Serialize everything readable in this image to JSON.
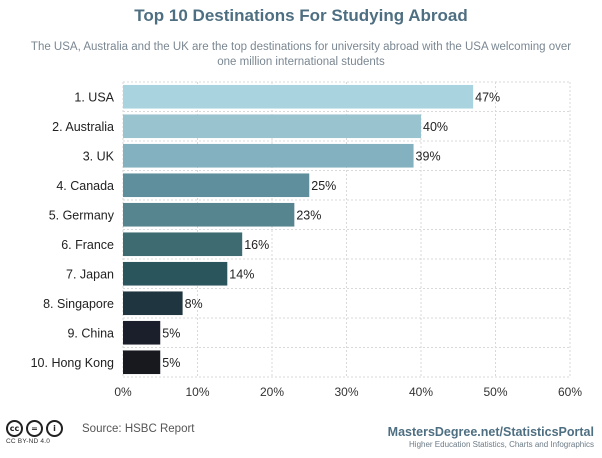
{
  "chart_data": {
    "type": "bar",
    "orientation": "horizontal",
    "title": "Top 10 Destinations For Studying Abroad",
    "subtitle": "The USA, Australia and the UK are the top destinations for university abroad with the USA welcoming over one million international students",
    "categories": [
      "1. USA",
      "2. Australia",
      "3. UK",
      "4. Canada",
      "5. Germany",
      "6. France",
      "7. Japan",
      "8. Singapore",
      "9. China",
      "10. Hong Kong"
    ],
    "values": [
      47,
      40,
      39,
      25,
      23,
      16,
      14,
      8,
      5,
      5
    ],
    "value_labels": [
      "47%",
      "40%",
      "39%",
      "25%",
      "23%",
      "16%",
      "14%",
      "8%",
      "5%",
      "5%"
    ],
    "bar_colors": [
      "#a8d3df",
      "#98c3cf",
      "#84b1bf",
      "#5f8f9c",
      "#56858f",
      "#3e6b72",
      "#2b555c",
      "#1f3540",
      "#1b1f2b",
      "#17191f"
    ],
    "x_ticks": [
      0,
      10,
      20,
      30,
      40,
      50,
      60
    ],
    "x_tick_labels": [
      "0%",
      "10%",
      "20%",
      "30%",
      "40%",
      "50%",
      "60%"
    ],
    "xlim": [
      0,
      60
    ],
    "xlabel": "",
    "ylabel": "",
    "grid": true,
    "legend": false
  },
  "footer": {
    "license_label": "CC BY-ND 4.0",
    "license_icons": [
      "cc",
      "=",
      "i"
    ],
    "source": "Source: HSBC Report",
    "brand": "MastersDegree.net/StatisticsPortal",
    "brand_tagline": "Higher Education Statistics, Charts and Infographics"
  },
  "colors": {
    "title": "#4e6f82",
    "grid": "#d9d9d9"
  }
}
